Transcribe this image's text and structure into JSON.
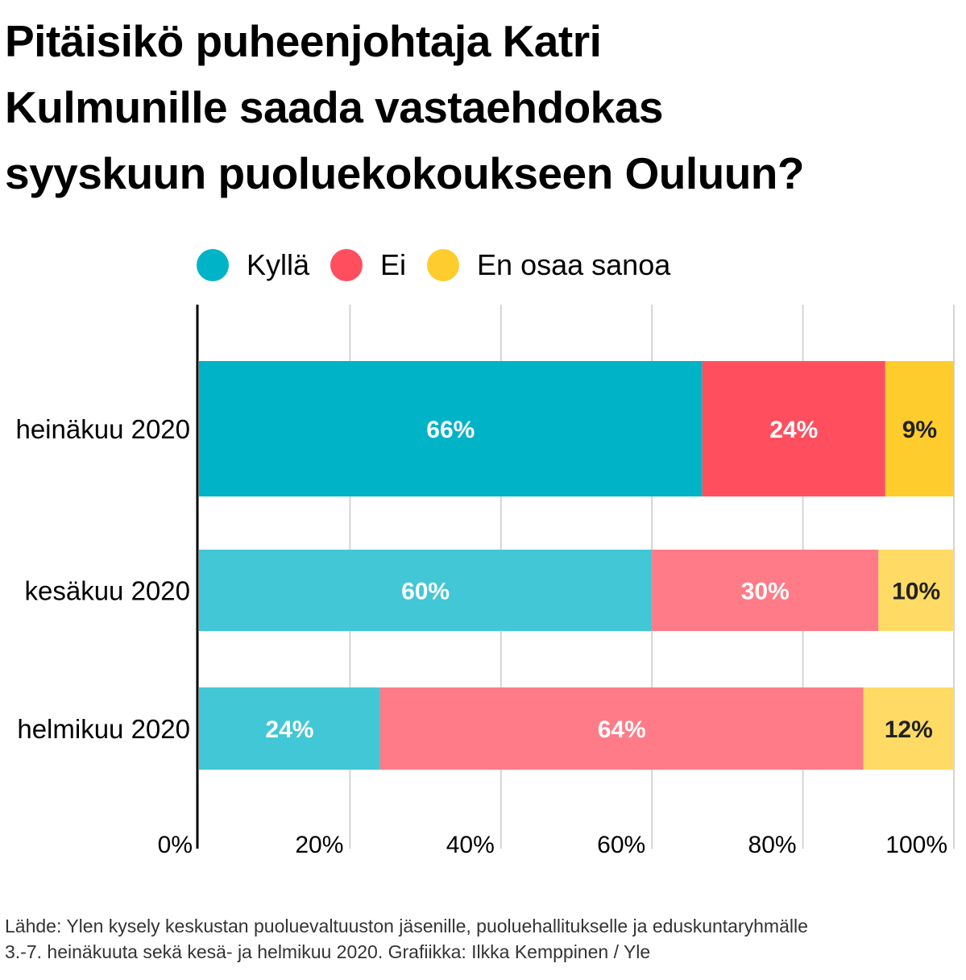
{
  "title_lines": [
    "Pitäisikö puheenjohtaja Katri",
    "Kulmunille saada vastaehdokas",
    "syyskuun puoluekokoukseen Ouluun?"
  ],
  "legend": [
    {
      "label": "Kyllä",
      "color": "#00b3c7"
    },
    {
      "label": "Ei",
      "color": "#ff4f5f"
    },
    {
      "label": "En osaa sanoa",
      "color": "#ffcc2e"
    }
  ],
  "source_lines": [
    "Lähde: Ylen kysely keskustan puoluevaltuuston jäsenille, puoluehallitukselle ja eduskuntaryhmälle",
    "3.-7. heinäkuuta sekä kesä- ja helmikuu 2020. Grafiikka: Ilkka Kemppinen / Yle"
  ],
  "chart_data": {
    "type": "bar",
    "orientation": "horizontal",
    "stacked": true,
    "title": "Pitäisikö puheenjohtaja Katri Kulmunille saada vastaehdokas syyskuun puoluekokoukseen Ouluun?",
    "categories": [
      "heinäkuu 2020",
      "kesäkuu 2020",
      "helmikuu 2020"
    ],
    "series": [
      {
        "name": "Kyllä",
        "values": [
          66,
          60,
          24
        ],
        "labels": [
          "66%",
          "60%",
          "24%"
        ],
        "colors": [
          "#00b3c7",
          "#41c7d6",
          "#41c7d6"
        ],
        "label_color": "#ffffff"
      },
      {
        "name": "Ei",
        "values": [
          24,
          30,
          64
        ],
        "labels": [
          "24%",
          "30%",
          "64%"
        ],
        "colors": [
          "#ff4f5f",
          "#ff7b87",
          "#ff7b87"
        ],
        "label_color": "#ffffff"
      },
      {
        "name": "En osaa sanoa",
        "values": [
          9,
          10,
          12
        ],
        "labels": [
          "9%",
          "10%",
          "12%"
        ],
        "colors": [
          "#ffcc2e",
          "#ffdb66",
          "#ffdb66"
        ],
        "label_color": "#222222"
      }
    ],
    "xlim": [
      0,
      100
    ],
    "x_ticks": [
      0,
      20,
      40,
      60,
      80,
      100
    ],
    "x_tick_labels": [
      "0%",
      "20%",
      "40%",
      "60%",
      "80%",
      "100%"
    ],
    "grid": true,
    "legend_position": "top"
  }
}
